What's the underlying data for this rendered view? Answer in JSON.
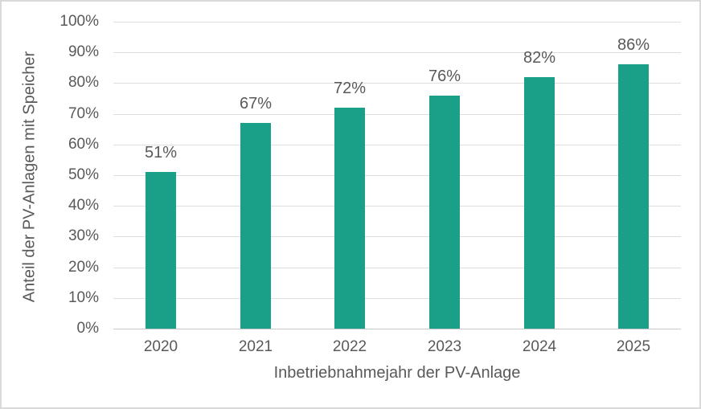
{
  "chart_data": {
    "type": "bar",
    "title": "",
    "xlabel": "Inbetriebnahmejahr der PV-Anlage",
    "ylabel": "Anteil der PV-Anlagen mit Speicher",
    "categories": [
      "2020",
      "2021",
      "2022",
      "2023",
      "2024",
      "2025"
    ],
    "values": [
      51,
      67,
      72,
      76,
      82,
      86
    ],
    "data_labels": [
      "51%",
      "67%",
      "72%",
      "76%",
      "82%",
      "86%"
    ],
    "ytick_labels": [
      "0%",
      "10%",
      "20%",
      "30%",
      "40%",
      "50%",
      "60%",
      "70%",
      "80%",
      "90%",
      "100%"
    ],
    "ytick_values": [
      0,
      10,
      20,
      30,
      40,
      50,
      60,
      70,
      80,
      90,
      100
    ],
    "ylim": [
      0,
      100
    ],
    "grid": true,
    "legend": false,
    "colors": {
      "bar": "#1A9F88",
      "text": "#595959",
      "gridline": "#DEDEDE",
      "axis_line": "#C9C9C9",
      "frame_border": "#D9D9D9",
      "background": "#FFFFFF"
    }
  }
}
